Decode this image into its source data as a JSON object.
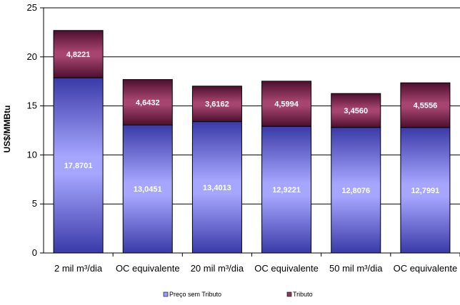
{
  "chart_data": {
    "type": "bar",
    "stacked": true,
    "categories": [
      "2 mil m³/dia",
      "OC equivalente",
      "20 mil m³/dia",
      "OC equivalente",
      "50 mil m³/dia",
      "OC equivalente"
    ],
    "series": [
      {
        "name": "Preço sem Tributo",
        "color": "#9999ff",
        "values": [
          17.8701,
          13.0451,
          13.4013,
          12.9221,
          12.8076,
          12.7991
        ],
        "labels": [
          "17,8701",
          "13,0451",
          "13,4013",
          "12,9221",
          "12,8076",
          "12,7991"
        ]
      },
      {
        "name": "Tributo",
        "color": "#993366",
        "values": [
          4.8221,
          4.6432,
          3.6162,
          4.5994,
          3.456,
          4.5556
        ],
        "labels": [
          "4,8221",
          "4,6432",
          "3,6162",
          "4,5994",
          "3,4560",
          "4,5556"
        ]
      }
    ],
    "ylabel": "US$/MMBtu",
    "ylim": [
      0,
      25
    ],
    "yticks": [
      0,
      5,
      10,
      15,
      20,
      25
    ],
    "grid": true,
    "legend_position": "bottom"
  }
}
